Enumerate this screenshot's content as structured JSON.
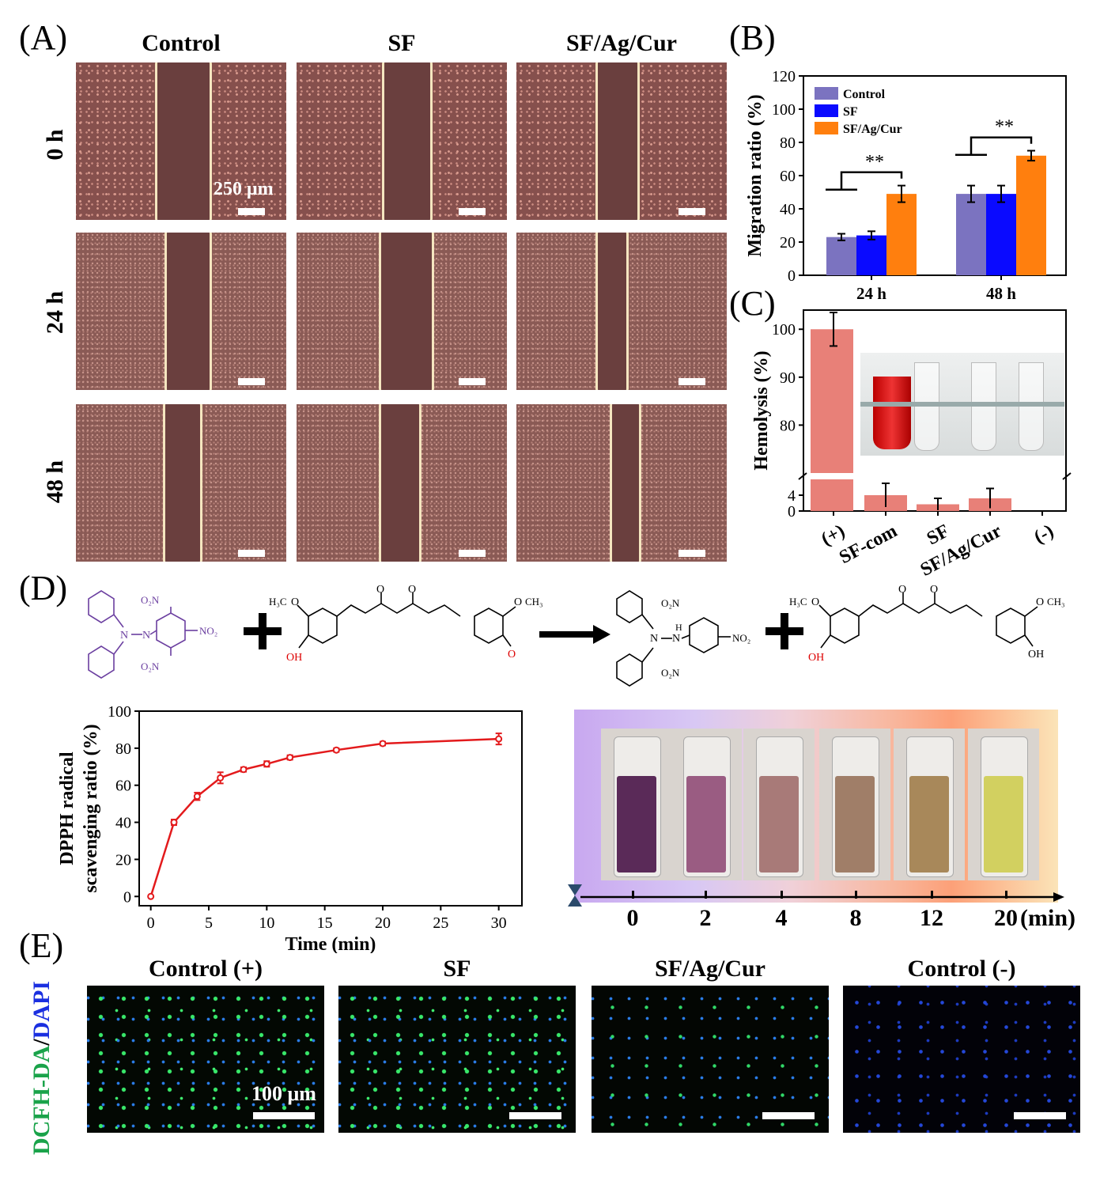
{
  "panels": {
    "A": "(A)",
    "B": "(B)",
    "C": "(C)",
    "D": "(D)",
    "E": "(E)"
  },
  "panel_a": {
    "columns": [
      "Control",
      "SF",
      "SF/Ag/Cur"
    ],
    "rows": [
      "0 h",
      "24 h",
      "48 h"
    ],
    "scale_label": "250 μm"
  },
  "panel_d": {
    "no2_top": "O₂N",
    "no2_right": "NO₂",
    "no2_bottom": "O₂N",
    "h3c": "H₃C",
    "och3": "O",
    "ch3": "CH₃",
    "oh": "OH",
    "o": "O",
    "n": "N",
    "hn": "H",
    "vial_timeline": {
      "ticks": [
        "0",
        "2",
        "4",
        "8",
        "12",
        "20"
      ],
      "unit": "(min)"
    },
    "vial_colors": [
      "#5a2a58",
      "#9a5c82",
      "#a87a78",
      "#a07e68",
      "#a8885a",
      "#d2d060"
    ]
  },
  "panel_e": {
    "stain_green": "DCFH-DA",
    "stain_sep": "/",
    "stain_blue": "DAPI",
    "columns": [
      "Control (+)",
      "SF",
      "SF/Ag/Cur",
      "Control (-)"
    ],
    "scale_label": "100 μm"
  },
  "colors": {
    "control": "#7b73c0",
    "sf": "#0a0aff",
    "sfagcur": "#ff7f0e",
    "hemo": "#e88078",
    "dpph": "#e31a1c",
    "green": "#1aa34a",
    "blue": "#1a2fe0"
  },
  "chart_data": [
    {
      "id": "B",
      "type": "bar",
      "title": "",
      "xlabel": "",
      "ylabel": "Migration ratio (%)",
      "ylim": [
        0,
        120
      ],
      "yticks": [
        0,
        20,
        40,
        60,
        80,
        100,
        120
      ],
      "categories": [
        "24 h",
        "48 h"
      ],
      "series": [
        {
          "name": "Control",
          "values": [
            23,
            49
          ],
          "errors": [
            2,
            5
          ]
        },
        {
          "name": "SF",
          "values": [
            24,
            49
          ],
          "errors": [
            2.5,
            5
          ]
        },
        {
          "name": "SF/Ag/Cur",
          "values": [
            49,
            72
          ],
          "errors": [
            5,
            3
          ]
        }
      ],
      "annotations": [
        "**",
        "**"
      ],
      "legend": "top-left"
    },
    {
      "id": "C",
      "type": "bar",
      "title": "",
      "xlabel": "",
      "ylabel": "Hemolysis (%)",
      "categories": [
        "(+)",
        "SF-com",
        "SF",
        "SF/Ag/Cur",
        "(-)"
      ],
      "values": [
        100,
        4,
        1.7,
        3.2,
        0
      ],
      "errors": [
        3.5,
        3,
        1.5,
        2.5,
        0
      ],
      "yticks_low": [
        0,
        4
      ],
      "yticks_high": [
        80,
        90,
        100
      ],
      "ylim_low": [
        0,
        8
      ],
      "ylim_high": [
        70,
        104
      ],
      "axis_break": true
    },
    {
      "id": "D",
      "type": "line",
      "title": "",
      "xlabel": "Time (min)",
      "ylabel": "DPPH radical scavenging ratio (%)",
      "ylabel_lines": [
        "DPPH radical",
        "scavenging ratio (%)"
      ],
      "xlim": [
        -1,
        32
      ],
      "ylim": [
        -5,
        100
      ],
      "xticks": [
        0,
        5,
        10,
        15,
        20,
        25,
        30
      ],
      "yticks": [
        0,
        20,
        40,
        60,
        80,
        100
      ],
      "series": [
        {
          "name": "DPPH",
          "x": [
            0,
            2,
            4,
            6,
            8,
            10,
            12,
            16,
            20,
            30
          ],
          "y": [
            0,
            40,
            54,
            64,
            68.5,
            71.5,
            75,
            79,
            82.5,
            85
          ],
          "errors": [
            0,
            1.5,
            2,
            3,
            1.2,
            1.5,
            1.2,
            1,
            1,
            3
          ]
        }
      ]
    }
  ]
}
